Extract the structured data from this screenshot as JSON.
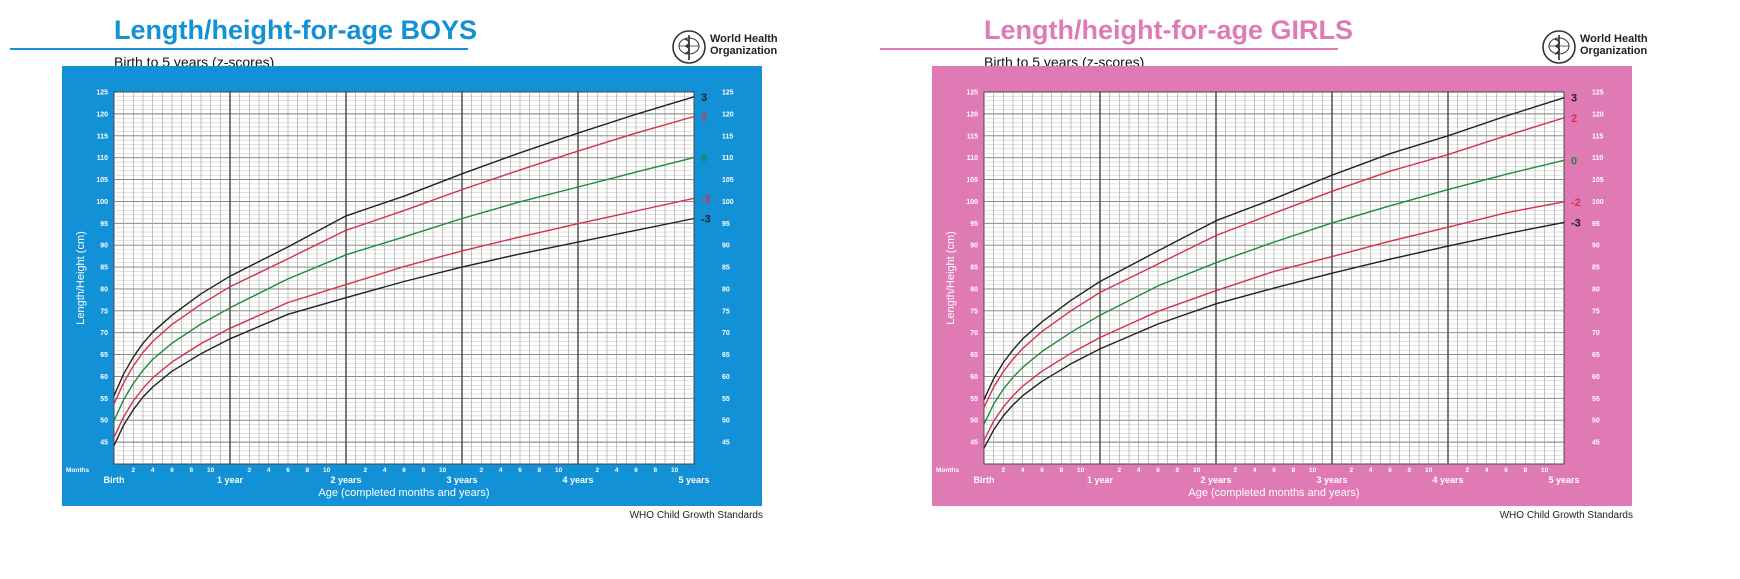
{
  "panels": [
    {
      "title": "Length/height-for-age BOYS",
      "subtitle": "Birth to 5 years (z-scores)",
      "logo_text": [
        "World Health",
        "Organization"
      ],
      "footer": "WHO Child Growth Standards",
      "accent_color": "#1391d6",
      "title_color": "#1391d6"
    },
    {
      "title": "Length/height-for-age GIRLS",
      "subtitle": "Birth to 5 years (z-scores)",
      "logo_text": [
        "World Health",
        "Organization"
      ],
      "footer": "WHO Child Growth Standards",
      "accent_color": "#e07ab4",
      "title_color": "#e07ab4"
    }
  ],
  "chart_data": [
    {
      "type": "line",
      "title": "Length/height-for-age BOYS",
      "xlabel": "Age (completed months and years)",
      "ylabel": "Length/Height (cm)",
      "xlim": [
        0,
        60
      ],
      "ylim": [
        40,
        125
      ],
      "y_ticks": [
        45,
        50,
        55,
        60,
        65,
        70,
        75,
        80,
        85,
        90,
        95,
        100,
        105,
        110,
        115,
        120,
        125
      ],
      "month_row_label": "Months",
      "month_ticks": [
        2,
        4,
        6,
        8,
        10
      ],
      "year_labels": [
        "Birth",
        "1 year",
        "2 years",
        "3 years",
        "4 years",
        "5 years"
      ],
      "grid": true,
      "x": [
        0,
        1,
        2,
        3,
        4,
        6,
        9,
        12,
        18,
        24,
        30,
        36,
        42,
        48,
        54,
        60
      ],
      "series": [
        {
          "name": "3",
          "color": "#222222",
          "values": [
            55.6,
            60.6,
            64.4,
            67.6,
            70.1,
            74.0,
            78.9,
            82.9,
            89.6,
            96.7,
            101.2,
            106.3,
            111.1,
            115.6,
            119.9,
            123.9
          ]
        },
        {
          "name": "2",
          "color": "#d6304a",
          "values": [
            53.7,
            58.6,
            62.4,
            65.5,
            68.0,
            71.9,
            76.5,
            80.5,
            86.9,
            93.4,
            97.9,
            102.7,
            107.2,
            111.5,
            115.6,
            119.4
          ]
        },
        {
          "name": "0",
          "color": "#1e8a3c",
          "values": [
            49.9,
            54.7,
            58.4,
            61.4,
            63.9,
            67.6,
            72.0,
            75.7,
            82.3,
            87.8,
            91.9,
            96.1,
            99.9,
            103.3,
            106.7,
            110.0
          ]
        },
        {
          "name": "-2",
          "color": "#d6304a",
          "values": [
            46.1,
            50.8,
            54.4,
            57.3,
            59.7,
            63.3,
            67.5,
            71.0,
            76.9,
            81.0,
            85.1,
            88.7,
            91.9,
            94.9,
            97.8,
            100.7
          ]
        },
        {
          "name": "-3",
          "color": "#222222",
          "values": [
            44.2,
            48.9,
            52.4,
            55.3,
            57.6,
            61.2,
            65.2,
            68.6,
            74.2,
            78.0,
            81.7,
            85.0,
            88.0,
            90.7,
            93.4,
            96.1
          ]
        }
      ]
    },
    {
      "type": "line",
      "title": "Length/height-for-age GIRLS",
      "xlabel": "Age (completed months and years)",
      "ylabel": "Length/Height (cm)",
      "xlim": [
        0,
        60
      ],
      "ylim": [
        40,
        125
      ],
      "y_ticks": [
        45,
        50,
        55,
        60,
        65,
        70,
        75,
        80,
        85,
        90,
        95,
        100,
        105,
        110,
        115,
        120,
        125
      ],
      "month_row_label": "Months",
      "month_ticks": [
        2,
        4,
        6,
        8,
        10
      ],
      "year_labels": [
        "Birth",
        "1 year",
        "2 years",
        "3 years",
        "4 years",
        "5 years"
      ],
      "grid": true,
      "x": [
        0,
        1,
        2,
        3,
        4,
        6,
        9,
        12,
        18,
        24,
        30,
        36,
        42,
        48,
        54,
        60
      ],
      "series": [
        {
          "name": "3",
          "color": "#222222",
          "values": [
            54.7,
            59.5,
            63.2,
            66.1,
            68.6,
            72.5,
            77.4,
            81.7,
            88.7,
            95.6,
            100.6,
            106.0,
            110.9,
            115.0,
            119.5,
            123.7
          ]
        },
        {
          "name": "2",
          "color": "#d6304a",
          "values": [
            52.9,
            57.6,
            61.1,
            64.0,
            66.4,
            70.3,
            75.0,
            79.2,
            85.7,
            92.2,
            97.3,
            102.3,
            106.9,
            110.7,
            115.0,
            119.1
          ]
        },
        {
          "name": "0",
          "color": "#1e8a3c",
          "values": [
            49.1,
            53.7,
            57.1,
            59.8,
            62.1,
            65.7,
            70.1,
            74.0,
            80.7,
            86.0,
            90.7,
            95.1,
            99.0,
            102.7,
            106.2,
            109.4
          ]
        },
        {
          "name": "-2",
          "color": "#d6304a",
          "values": [
            45.4,
            49.8,
            53.0,
            55.6,
            57.8,
            61.2,
            65.3,
            68.9,
            74.9,
            79.6,
            84.0,
            87.4,
            90.9,
            94.1,
            97.4,
            99.9
          ]
        },
        {
          "name": "-3",
          "color": "#222222",
          "values": [
            43.6,
            47.8,
            51.0,
            53.5,
            55.6,
            58.9,
            62.9,
            66.3,
            72.0,
            76.6,
            80.2,
            83.6,
            86.8,
            89.8,
            92.6,
            95.2
          ]
        }
      ]
    }
  ]
}
